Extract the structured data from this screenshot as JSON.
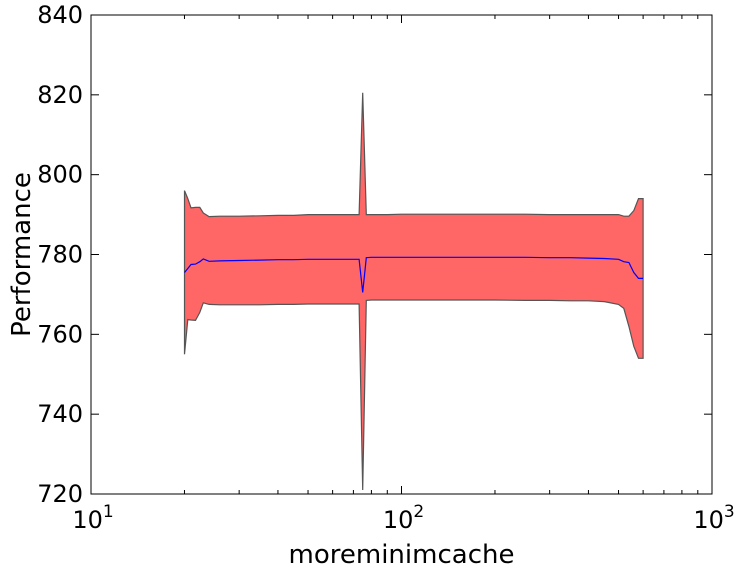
{
  "chart_data": {
    "type": "area",
    "title": "",
    "xlabel": "moreminimcache",
    "ylabel": "Performance",
    "xscale": "log",
    "xlim": [
      10,
      1000
    ],
    "ylim": [
      720,
      840
    ],
    "x_ticks": [
      {
        "value": 10,
        "base": "10",
        "exp": "1"
      },
      {
        "value": 100,
        "base": "10",
        "exp": "2"
      },
      {
        "value": 1000,
        "base": "10",
        "exp": "3"
      }
    ],
    "y_ticks": [
      720,
      740,
      760,
      780,
      800,
      820,
      840
    ],
    "grid": false,
    "legend": "none",
    "colors": {
      "band_fill": "#ff6666",
      "band_edge": "#555555",
      "mean_line": "#0000ff"
    },
    "series": [
      {
        "x": [
          20,
          20.5,
          21,
          21.7,
          22.4,
          23,
          24,
          26,
          30,
          35,
          40,
          45,
          50,
          55,
          60,
          65,
          70,
          73,
          75,
          77,
          80,
          90,
          100,
          120,
          150,
          180,
          200,
          250,
          300,
          350,
          400,
          450,
          500,
          520,
          540,
          560,
          580,
          600
        ],
        "mean": [
          775.5,
          776.5,
          777.5,
          777.6,
          778.2,
          778.9,
          778.3,
          778.4,
          778.5,
          778.6,
          778.7,
          778.7,
          778.8,
          778.8,
          778.8,
          778.8,
          778.8,
          778.8,
          770.5,
          779.2,
          779.3,
          779.3,
          779.3,
          779.3,
          779.3,
          779.3,
          779.3,
          779.3,
          779.2,
          779.2,
          779.1,
          779.0,
          778.8,
          778.2,
          778.0,
          775.5,
          774.0,
          774.0
        ],
        "upper": [
          796.0,
          794.0,
          791.7,
          791.8,
          791.8,
          790.4,
          789.5,
          789.6,
          789.6,
          789.7,
          789.8,
          789.8,
          790.0,
          790.0,
          790.0,
          790.0,
          790.0,
          790.0,
          820.5,
          790.0,
          790.0,
          790.0,
          790.1,
          790.1,
          790.1,
          790.1,
          790.1,
          790.1,
          790.0,
          790.0,
          790.0,
          790.0,
          790.0,
          789.6,
          789.6,
          791.0,
          794.0,
          794.0
        ],
        "lower": [
          755.0,
          763.7,
          763.6,
          763.5,
          765.5,
          767.9,
          767.5,
          767.4,
          767.4,
          767.4,
          767.5,
          767.5,
          767.6,
          767.6,
          767.6,
          767.6,
          767.6,
          767.6,
          721.0,
          768.5,
          768.6,
          768.6,
          768.6,
          768.6,
          768.6,
          768.6,
          768.6,
          768.5,
          768.5,
          768.4,
          768.4,
          768.2,
          767.5,
          766.5,
          762.0,
          757.0,
          754.0,
          754.0
        ]
      }
    ]
  }
}
